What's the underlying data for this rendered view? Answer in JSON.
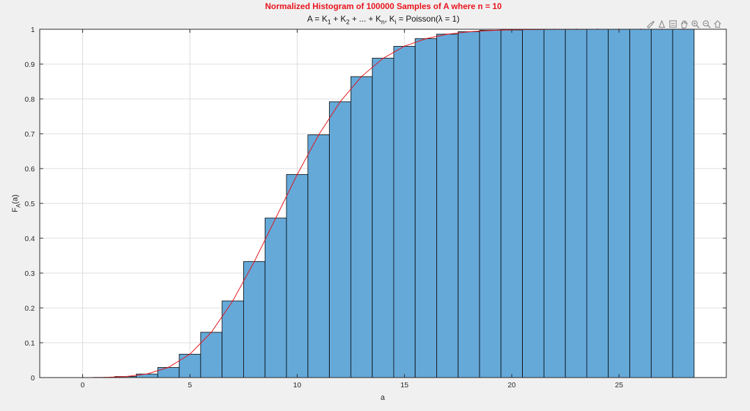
{
  "header": {
    "title": "Normalized Histogram of 100000 Samples of A where n = 10",
    "subtitle_prefix": "A = K",
    "subtitle_sub1": "1",
    "subtitle_mid1": " + K",
    "subtitle_sub2": "2",
    "subtitle_mid2": " + ... + K",
    "subtitle_sub3": "n",
    "subtitle_mid3": ", K",
    "subtitle_sub4": "i",
    "subtitle_suffix": " = Poisson(λ = 1)"
  },
  "toolbar": {
    "icons": [
      "brush-icon",
      "datatip-icon",
      "export-icon",
      "pan-icon",
      "zoom-in-icon",
      "zoom-out-icon",
      "home-icon"
    ]
  },
  "colors": {
    "bar_fill": "#65a9d9",
    "bar_edge": "#000000",
    "curve": "#e0141c",
    "grid": "#dcdcdc"
  },
  "chart_data": {
    "type": "bar",
    "title": "Normalized Histogram of 100000 Samples of A where n = 10",
    "xlabel": "a",
    "ylabel": "F_A(a)",
    "xlim": [
      -2,
      30
    ],
    "ylim": [
      0,
      1
    ],
    "xticks": [
      0,
      5,
      10,
      15,
      20,
      25
    ],
    "yticks": [
      0,
      0.1,
      0.2,
      0.3,
      0.4,
      0.5,
      0.6,
      0.7,
      0.8,
      0.9,
      1
    ],
    "grid": true,
    "bins": {
      "centers": [
        1,
        2,
        3,
        4,
        5,
        6,
        7,
        8,
        9,
        10,
        11,
        12,
        13,
        14,
        15,
        16,
        17,
        18,
        19,
        20,
        21,
        22,
        23,
        24,
        25,
        26,
        27,
        28
      ],
      "width": 1,
      "values": [
        0.0005,
        0.003,
        0.01,
        0.029,
        0.067,
        0.13,
        0.22,
        0.333,
        0.458,
        0.583,
        0.697,
        0.792,
        0.864,
        0.917,
        0.951,
        0.973,
        0.986,
        0.993,
        0.997,
        0.998,
        0.9995,
        1.0,
        1.0,
        1.0,
        1.0,
        1.0,
        1.0,
        1.0
      ]
    },
    "series": [
      {
        "type": "line",
        "x": [
          0,
          1,
          2,
          3,
          4,
          5,
          6,
          7,
          8,
          9,
          10,
          11,
          12,
          13,
          14,
          15,
          16,
          17,
          18,
          19,
          20,
          21,
          22,
          23,
          24,
          25,
          26,
          27,
          28
        ],
        "y": [
          0.0,
          0.0005,
          0.0028,
          0.0103,
          0.0293,
          0.0671,
          0.1301,
          0.2202,
          0.3328,
          0.4579,
          0.583,
          0.6968,
          0.7916,
          0.8645,
          0.9165,
          0.9513,
          0.973,
          0.9857,
          0.9928,
          0.9965,
          0.9984,
          0.9993,
          0.9997,
          0.9999,
          1.0,
          1.0,
          1.0,
          1.0,
          1.0
        ]
      }
    ]
  }
}
